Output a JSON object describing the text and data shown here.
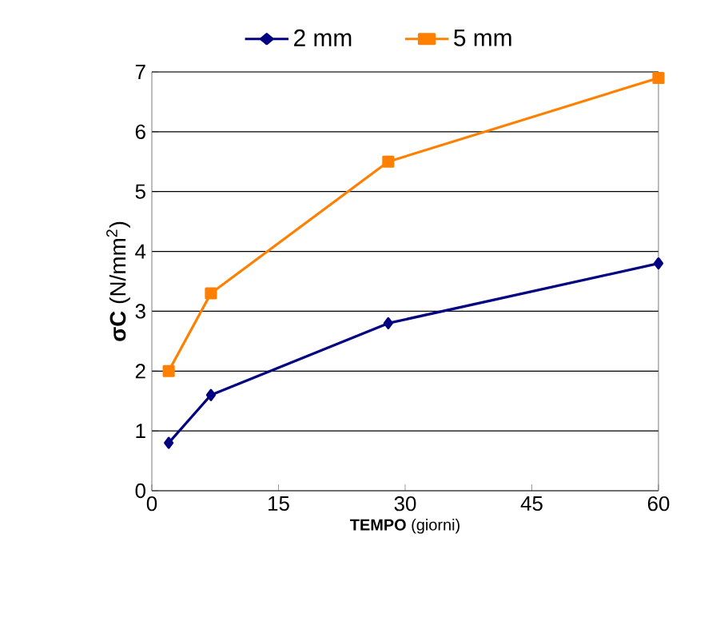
{
  "chart_data": {
    "type": "line",
    "xlabel": "**TEMPO** (giorni)",
    "ylabel": "**σC** (N/mm$^{2}$)",
    "xlim": [
      0,
      60
    ],
    "ylim": [
      0,
      7
    ],
    "xticks": [
      0,
      15,
      30,
      45,
      60
    ],
    "yticks": [
      0,
      1,
      2,
      3,
      4,
      5,
      6,
      7
    ],
    "grid": "y",
    "legend": "top",
    "line_style": "solid",
    "series": [
      {
        "name": "2 mm",
        "color": "#000080",
        "marker": "diamond",
        "x": [
          2,
          7,
          28,
          60
        ],
        "values": [
          0.8,
          1.6,
          2.8,
          3.8
        ]
      },
      {
        "name": "5 mm",
        "color": "#ff8000",
        "marker": "square",
        "x": [
          2,
          7,
          28,
          60
        ],
        "values": [
          2.0,
          3.3,
          5.5,
          6.9
        ]
      }
    ]
  }
}
